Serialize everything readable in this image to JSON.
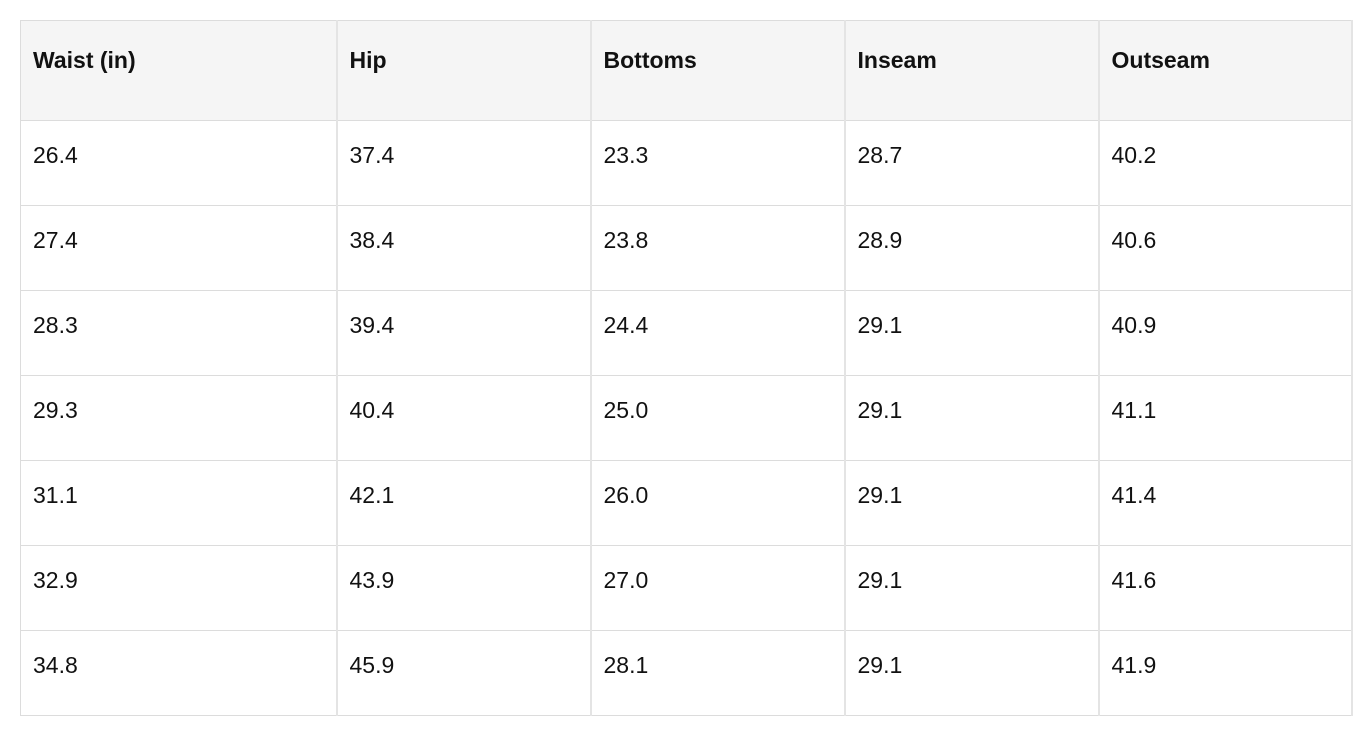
{
  "table": {
    "header": [
      "Waist (in)",
      "Hip",
      "Bottoms",
      "Inseam",
      "Outseam"
    ],
    "rows": [
      [
        "26.4",
        "37.4",
        "23.3",
        "28.7",
        "40.2"
      ],
      [
        "27.4",
        "38.4",
        "23.8",
        "28.9",
        "40.6"
      ],
      [
        "28.3",
        "39.4",
        "24.4",
        "29.1",
        "40.9"
      ],
      [
        "29.3",
        "40.4",
        "25.0",
        "29.1",
        "41.1"
      ],
      [
        "31.1",
        "42.1",
        "26.0",
        "29.1",
        "41.4"
      ],
      [
        "32.9",
        "43.9",
        "27.0",
        "29.1",
        "41.6"
      ],
      [
        "34.8",
        "45.9",
        "28.1",
        "29.1",
        "41.9"
      ]
    ]
  }
}
